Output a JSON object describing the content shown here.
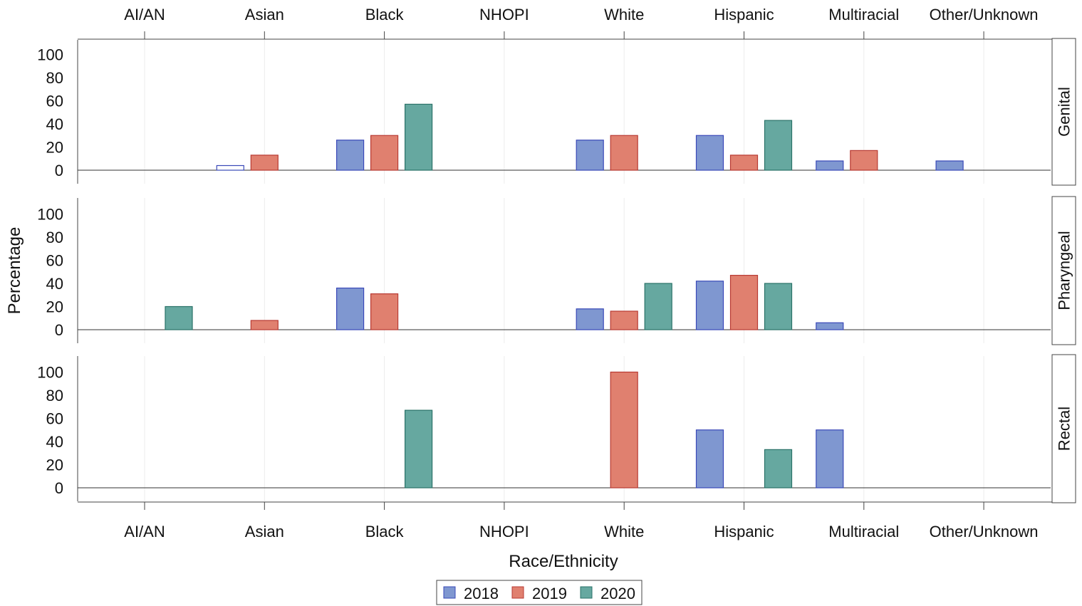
{
  "chart_data": {
    "type": "bar",
    "xlabel": "Race/Ethnicity",
    "ylabel": "Percentage",
    "categories": [
      "AI/AN",
      "Asian",
      "Black",
      "NHOPI",
      "White",
      "Hispanic",
      "Multiracial",
      "Other/Unknown"
    ],
    "ylim": [
      0,
      110
    ],
    "yticks": [
      0,
      20,
      40,
      60,
      80,
      100
    ],
    "grid": true,
    "legend": {
      "placement": "bottom-center",
      "entries": [
        "2018",
        "2019",
        "2020"
      ]
    },
    "colors": {
      "2018": "#7f97d0",
      "2019": "#e0806f",
      "2020": "#66a8a0"
    },
    "edge_colors": {
      "2018": "#3a49b8",
      "2019": "#b83a33",
      "2020": "#2a7268"
    },
    "panels": [
      {
        "name": "Genital",
        "series": [
          {
            "name": "2018",
            "values": [
              null,
              4,
              26,
              null,
              26,
              30,
              8,
              8
            ]
          },
          {
            "name": "2019",
            "values": [
              null,
              13,
              30,
              null,
              30,
              13,
              17,
              null
            ]
          },
          {
            "name": "2020",
            "values": [
              null,
              null,
              57,
              null,
              null,
              43,
              null,
              null
            ]
          }
        ],
        "hollow": [
          [
            0,
            1
          ]
        ]
      },
      {
        "name": "Pharyngeal",
        "series": [
          {
            "name": "2018",
            "values": [
              null,
              null,
              36,
              null,
              18,
              42,
              6,
              null
            ]
          },
          {
            "name": "2019",
            "values": [
              null,
              8,
              31,
              null,
              16,
              47,
              null,
              null
            ]
          },
          {
            "name": "2020",
            "values": [
              20,
              null,
              null,
              null,
              40,
              40,
              null,
              null
            ]
          }
        ],
        "hollow": []
      },
      {
        "name": "Rectal",
        "series": [
          {
            "name": "2018",
            "values": [
              null,
              null,
              null,
              null,
              null,
              50,
              50,
              null
            ]
          },
          {
            "name": "2019",
            "values": [
              null,
              null,
              null,
              null,
              100,
              null,
              null,
              null
            ]
          },
          {
            "name": "2020",
            "values": [
              null,
              null,
              67,
              null,
              null,
              33,
              null,
              null
            ]
          }
        ],
        "hollow": []
      }
    ]
  }
}
